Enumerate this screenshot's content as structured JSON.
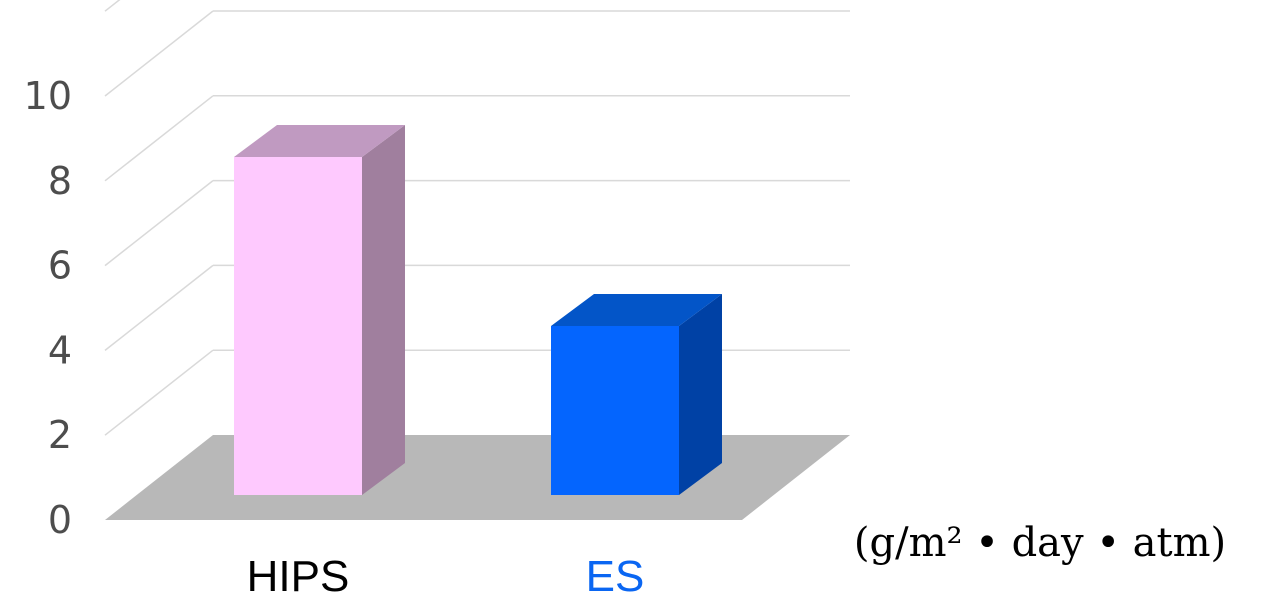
{
  "chart_data": {
    "type": "bar",
    "categories": [
      "HIPS",
      "ES"
    ],
    "values": [
      8,
      4
    ],
    "ylim": [
      0,
      10
    ],
    "yticks": [
      0,
      2,
      4,
      6,
      8,
      10
    ],
    "unit_label": "(g/m² • day • atm)",
    "grid": true,
    "colors": {
      "HIPS": {
        "front": "#fec9fe",
        "side": "#a07f9e",
        "top": "#c09ac1",
        "label": "#000000"
      },
      "ES": {
        "front": "#0465fe",
        "side": "#0041a5",
        "top": "#0355c8",
        "label": "#0a66f2"
      },
      "floor": "#b8b8b8",
      "grid": "#d9d9d9"
    }
  }
}
